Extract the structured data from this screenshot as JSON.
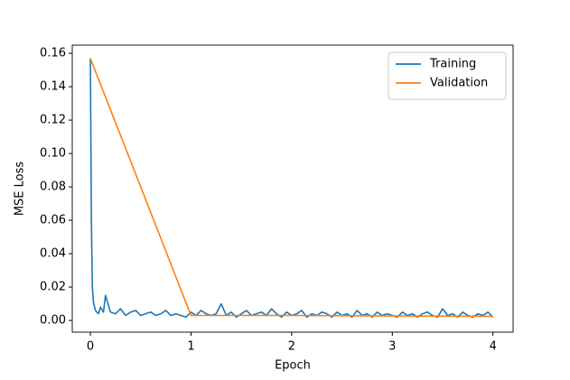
{
  "chart_data": {
    "type": "line",
    "xlabel": "Epoch",
    "ylabel": "MSE Loss",
    "series": [
      {
        "name": "Training",
        "color": "#1f77b4",
        "x": [
          0,
          0.01,
          0.02,
          0.03,
          0.05,
          0.08,
          0.1,
          0.13,
          0.15,
          0.2,
          0.25,
          0.3,
          0.35,
          0.4,
          0.45,
          0.5,
          0.55,
          0.6,
          0.65,
          0.7,
          0.75,
          0.8,
          0.85,
          0.9,
          0.95,
          1.0,
          1.05,
          1.1,
          1.15,
          1.2,
          1.25,
          1.3,
          1.35,
          1.4,
          1.45,
          1.5,
          1.55,
          1.6,
          1.65,
          1.7,
          1.75,
          1.8,
          1.85,
          1.9,
          1.95,
          2.0,
          2.05,
          2.1,
          2.15,
          2.2,
          2.25,
          2.3,
          2.35,
          2.4,
          2.45,
          2.5,
          2.55,
          2.6,
          2.65,
          2.7,
          2.75,
          2.8,
          2.85,
          2.9,
          2.95,
          3.0,
          3.05,
          3.1,
          3.15,
          3.2,
          3.25,
          3.3,
          3.35,
          3.4,
          3.45,
          3.5,
          3.55,
          3.6,
          3.65,
          3.7,
          3.75,
          3.8,
          3.85,
          3.9,
          3.95,
          4.0
        ],
        "values": [
          0.157,
          0.06,
          0.02,
          0.011,
          0.006,
          0.004,
          0.008,
          0.005,
          0.015,
          0.005,
          0.004,
          0.007,
          0.003,
          0.005,
          0.006,
          0.003,
          0.004,
          0.005,
          0.003,
          0.004,
          0.006,
          0.003,
          0.004,
          0.003,
          0.002,
          0.005,
          0.003,
          0.006,
          0.004,
          0.003,
          0.004,
          0.01,
          0.003,
          0.005,
          0.002,
          0.004,
          0.006,
          0.003,
          0.004,
          0.005,
          0.003,
          0.007,
          0.004,
          0.002,
          0.005,
          0.003,
          0.004,
          0.006,
          0.002,
          0.004,
          0.003,
          0.005,
          0.004,
          0.002,
          0.005,
          0.003,
          0.004,
          0.002,
          0.006,
          0.003,
          0.004,
          0.002,
          0.005,
          0.003,
          0.004,
          0.003,
          0.002,
          0.005,
          0.003,
          0.004,
          0.002,
          0.004,
          0.005,
          0.003,
          0.002,
          0.007,
          0.003,
          0.004,
          0.002,
          0.005,
          0.003,
          0.002,
          0.004,
          0.003,
          0.005,
          0.002
        ]
      },
      {
        "name": "Validation",
        "color": "#ff7f0e",
        "x": [
          0,
          1,
          2,
          3,
          4
        ],
        "values": [
          0.157,
          0.003,
          0.003,
          0.0027,
          0.0025
        ]
      }
    ],
    "xlim": [
      -0.18,
      4.2
    ],
    "ylim": [
      -0.007,
      0.1649
    ],
    "xticks": [
      0,
      1,
      2,
      3,
      4
    ],
    "yticks": [
      {
        "value": 0,
        "label": "0.00"
      },
      {
        "value": 0.02,
        "label": "0.02"
      },
      {
        "value": 0.04,
        "label": "0.04"
      },
      {
        "value": 0.06,
        "label": "0.06"
      },
      {
        "value": 0.08,
        "label": "0.08"
      },
      {
        "value": 0.1,
        "label": "0.10"
      },
      {
        "value": 0.12,
        "label": "0.12"
      },
      {
        "value": 0.14,
        "label": "0.14"
      },
      {
        "value": 0.16,
        "label": "0.16"
      }
    ],
    "legend": "upper right",
    "grid": false
  }
}
